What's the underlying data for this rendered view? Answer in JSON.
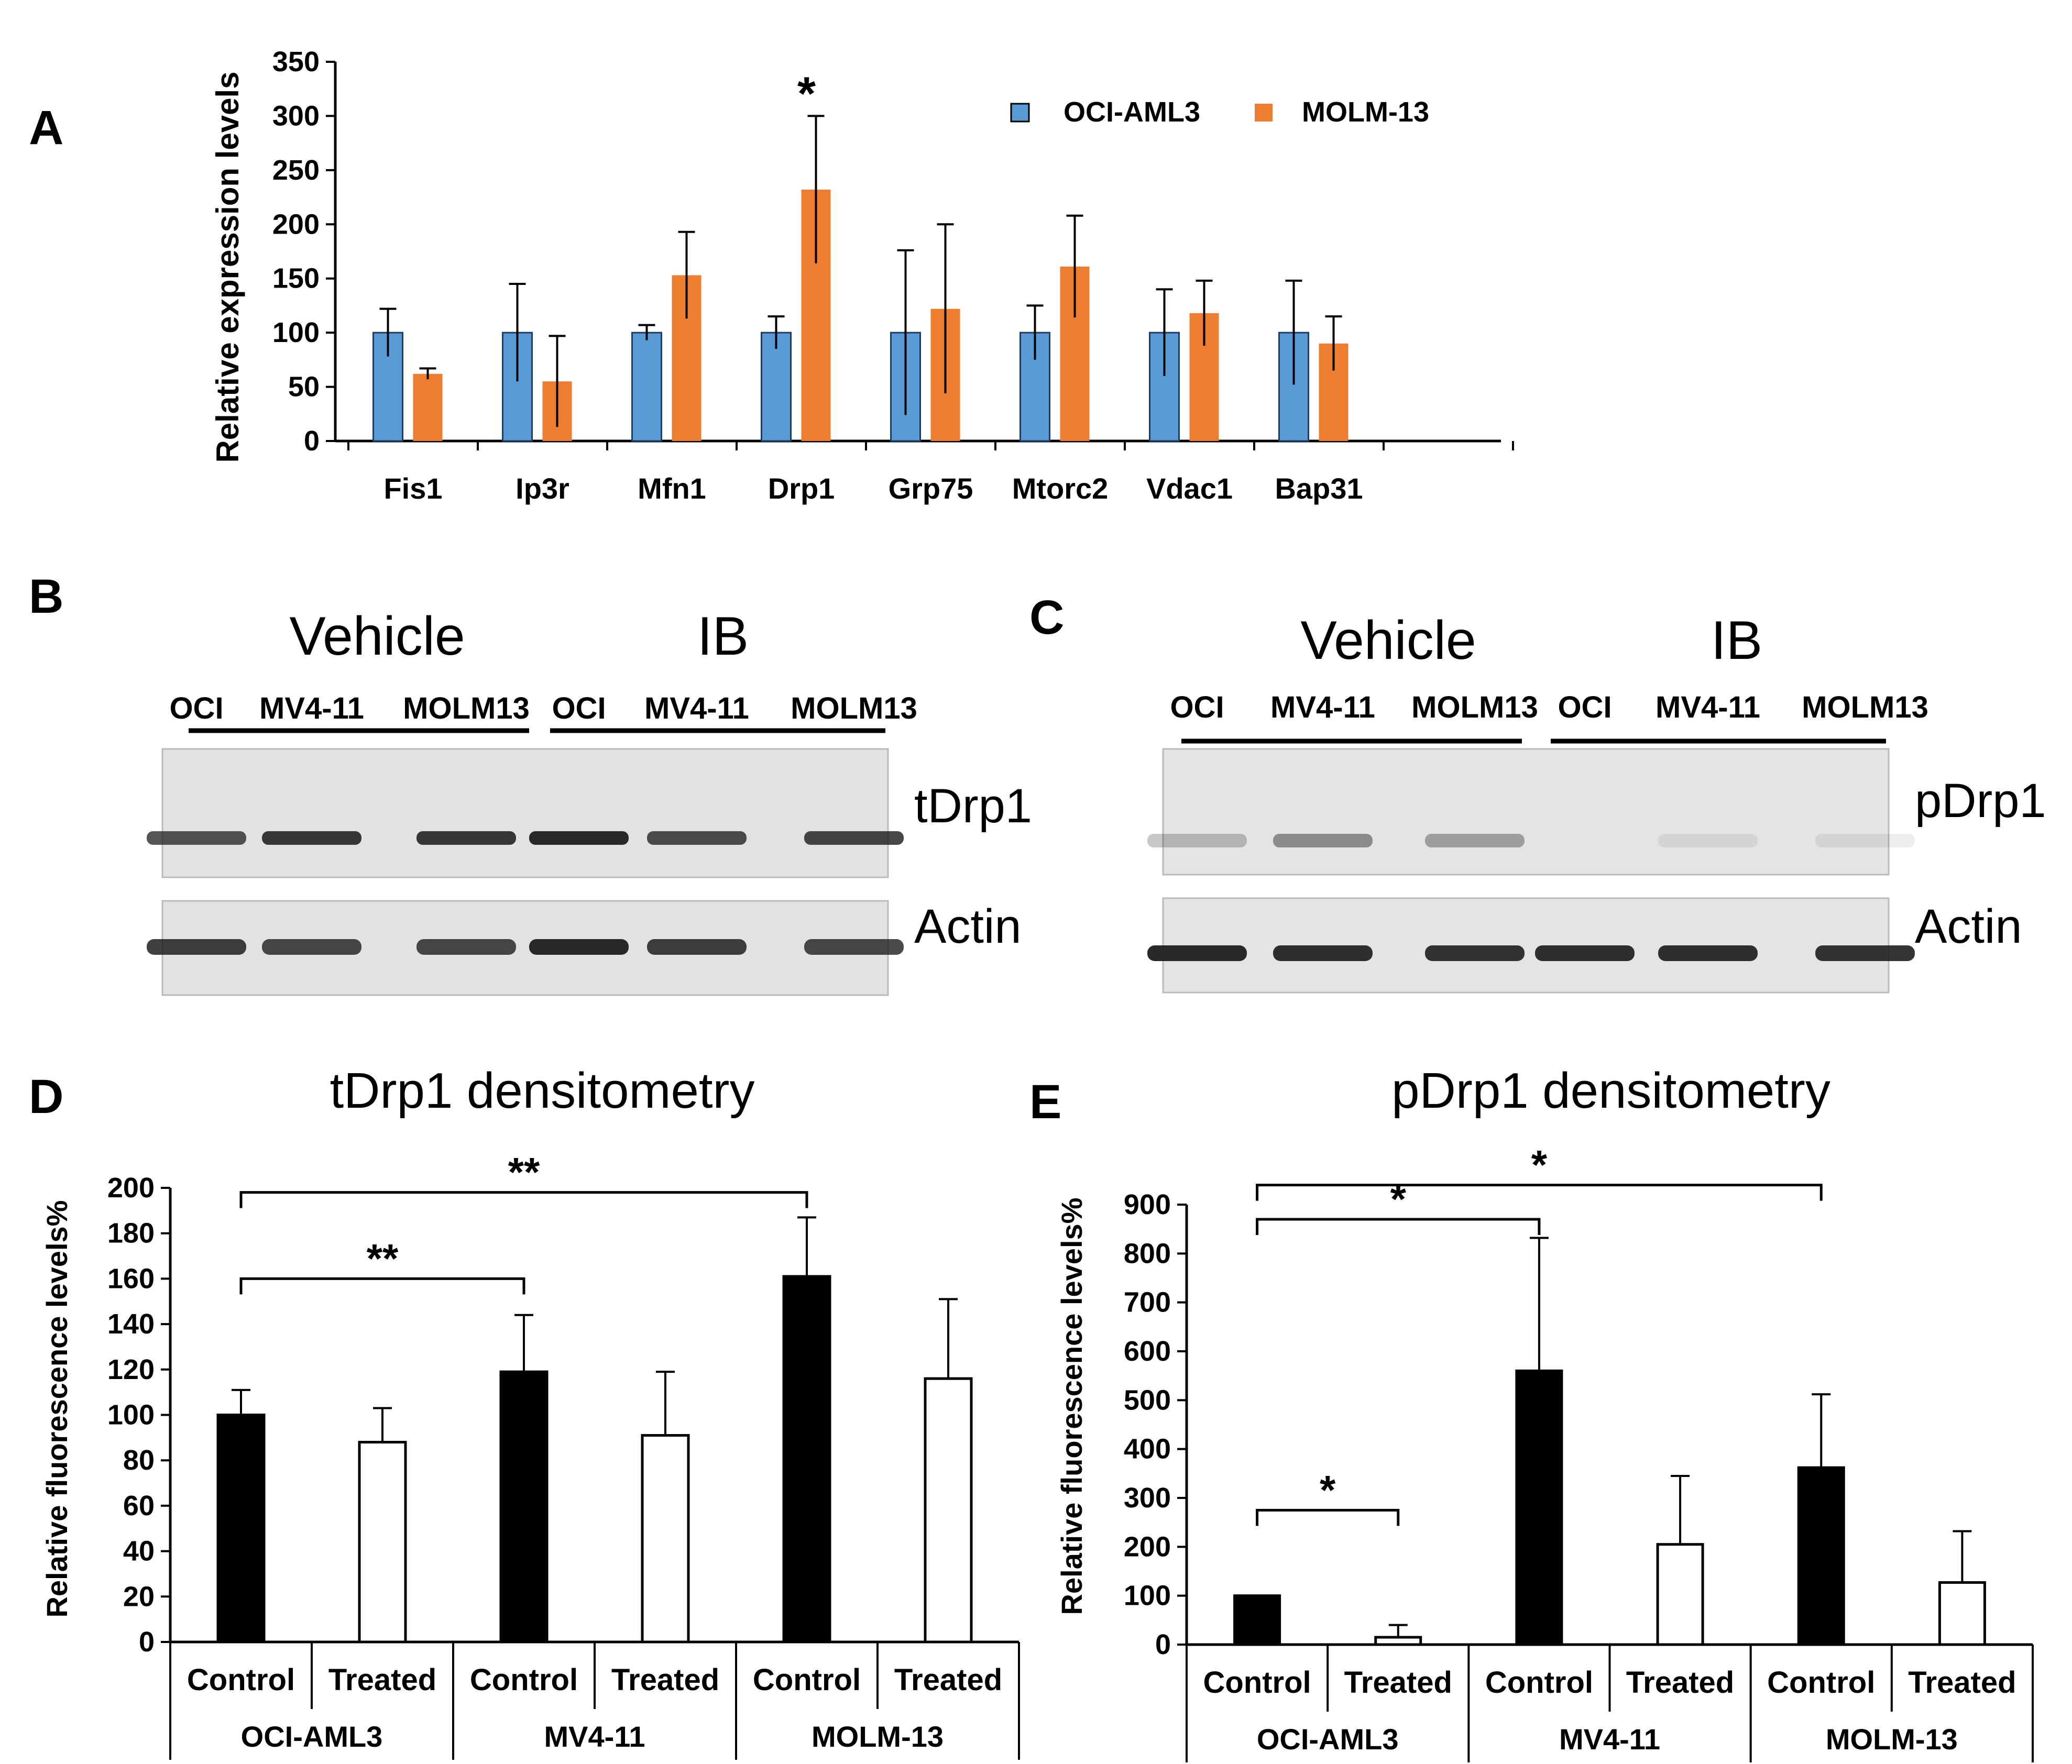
{
  "panels": {
    "A": "A",
    "B": "B",
    "C": "C",
    "D": "D",
    "E": "E"
  },
  "colors": {
    "oci": "#5b9bd5",
    "molm": "#ed7d31",
    "black_bar": "#000000",
    "white_bar": "#ffffff",
    "axis": "#000000",
    "blot_bg": "#e2e2e2",
    "band": "#1e1e1e"
  },
  "blot_b": {
    "vehicle_label": "Vehicle",
    "ib_label": "IB",
    "lanes": [
      "OCI",
      "MV4-11",
      "MOLM13",
      "OCI",
      "MV4-11",
      "MOLM13"
    ],
    "row1_label": "tDrp1",
    "row2_label": "Actin"
  },
  "blot_c": {
    "vehicle_label": "Vehicle",
    "ib_label": "IB",
    "lanes": [
      "OCI",
      "MV4-11",
      "MOLM13",
      "OCI",
      "MV4-11",
      "MOLM13"
    ],
    "row1_label": "pDrp1",
    "row2_label": "Actin"
  },
  "chart_data": [
    {
      "panel": "A",
      "type": "bar",
      "categories": [
        "Fis1",
        "Ip3r",
        "Mfn1",
        "Drp1",
        "Grp75",
        "Mtorc2",
        "Vdac1",
        "Bap31"
      ],
      "series": [
        {
          "name": "OCI-AML3",
          "values": [
            100,
            100,
            100,
            100,
            100,
            100,
            100,
            100
          ],
          "errors": [
            22,
            45,
            7,
            15,
            76,
            25,
            40,
            48
          ]
        },
        {
          "name": "MOLM-13",
          "values": [
            62,
            55,
            153,
            232,
            122,
            161,
            118,
            90
          ],
          "errors": [
            5,
            42,
            40,
            68,
            78,
            47,
            30,
            25
          ]
        }
      ],
      "ylabel": "Relative expression levels",
      "ylim": [
        0,
        350
      ],
      "yticks": [
        "0",
        "50",
        "100",
        "150",
        "200",
        "250",
        "300",
        "350"
      ],
      "legend_position": "top-right",
      "annotations": [
        {
          "text": "*",
          "category": "Drp1"
        }
      ]
    },
    {
      "panel": "D",
      "type": "bar",
      "title": "tDrp1 densitometry",
      "groups": [
        "OCI-AML3",
        "MV4-11",
        "MOLM-13"
      ],
      "categories": [
        "Control",
        "Treated",
        "Control",
        "Treated",
        "Control",
        "Treated"
      ],
      "values": [
        100,
        88,
        119,
        91,
        161,
        116
      ],
      "errors": [
        11,
        15,
        25,
        28,
        26,
        35
      ],
      "ylabel": "Relative fluorescence levels%",
      "ylim": [
        0,
        200
      ],
      "yticks": [
        "0",
        "20",
        "40",
        "60",
        "80",
        "100",
        "120",
        "140",
        "160",
        "180",
        "200"
      ],
      "annotations": [
        {
          "text": "**",
          "from": 0,
          "to": 2,
          "level": 160
        },
        {
          "text": "**",
          "from": 0,
          "to": 4,
          "level": 198
        }
      ]
    },
    {
      "panel": "E",
      "type": "bar",
      "title": "pDrp1 densitometry",
      "groups": [
        "OCI-AML3",
        "MV4-11",
        "MOLM-13"
      ],
      "categories": [
        "Control",
        "Treated",
        "Control",
        "Treated",
        "Control",
        "Treated"
      ],
      "values": [
        100,
        15,
        560,
        205,
        362,
        127
      ],
      "errors": [
        0,
        25,
        272,
        140,
        150,
        105
      ],
      "ylabel": "Relative fluorescence levels%",
      "ylim": [
        0,
        900
      ],
      "yticks": [
        "0",
        "100",
        "200",
        "300",
        "400",
        "500",
        "600",
        "700",
        "800",
        "900"
      ],
      "annotations": [
        {
          "text": "*",
          "from": 0,
          "to": 1,
          "level": 275
        },
        {
          "text": "*",
          "from": 0,
          "to": 2,
          "level": 870
        },
        {
          "text": "*",
          "from": 0,
          "to": 4,
          "level": 940
        }
      ]
    }
  ]
}
